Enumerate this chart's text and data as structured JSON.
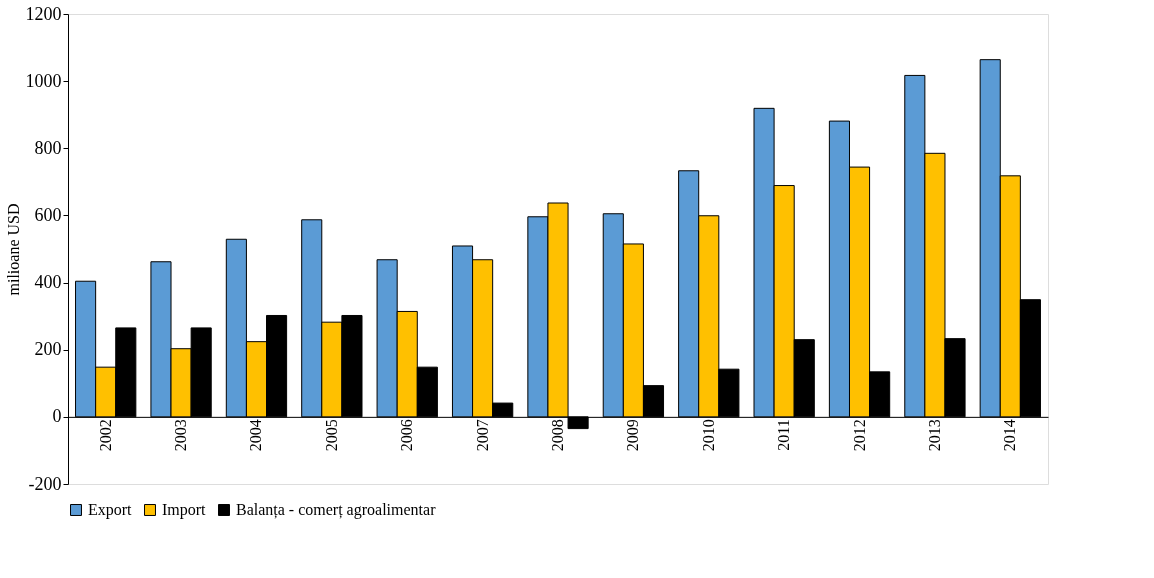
{
  "chart_data": {
    "type": "bar",
    "ylabel": "milioane  USD",
    "categories": [
      "2002",
      "2003",
      "2004",
      "2005",
      "2006",
      "2007",
      "2008",
      "2009",
      "2010",
      "2011",
      "2012",
      "2013",
      "2014"
    ],
    "series": [
      {
        "name": "Export",
        "color": "#5b9bd5",
        "values": [
          404,
          462,
          529,
          587,
          468,
          509,
          596,
          605,
          733,
          919,
          881,
          1017,
          1064
        ]
      },
      {
        "name": "Import",
        "color": "#ffc000",
        "values": [
          148,
          203,
          224,
          282,
          314,
          468,
          637,
          515,
          599,
          689,
          744,
          785,
          718
        ]
      },
      {
        "name": "Balanța  - comerț  agroalimentar",
        "color": "#000000",
        "values": [
          265,
          265,
          302,
          302,
          148,
          41,
          -35,
          93,
          142,
          230,
          134,
          233,
          349
        ]
      }
    ],
    "ylim": [
      -200,
      1200
    ],
    "yticks": [
      -200,
      0,
      200,
      400,
      600,
      800,
      1000,
      1200
    ],
    "grid": false,
    "legend": "bottom"
  }
}
